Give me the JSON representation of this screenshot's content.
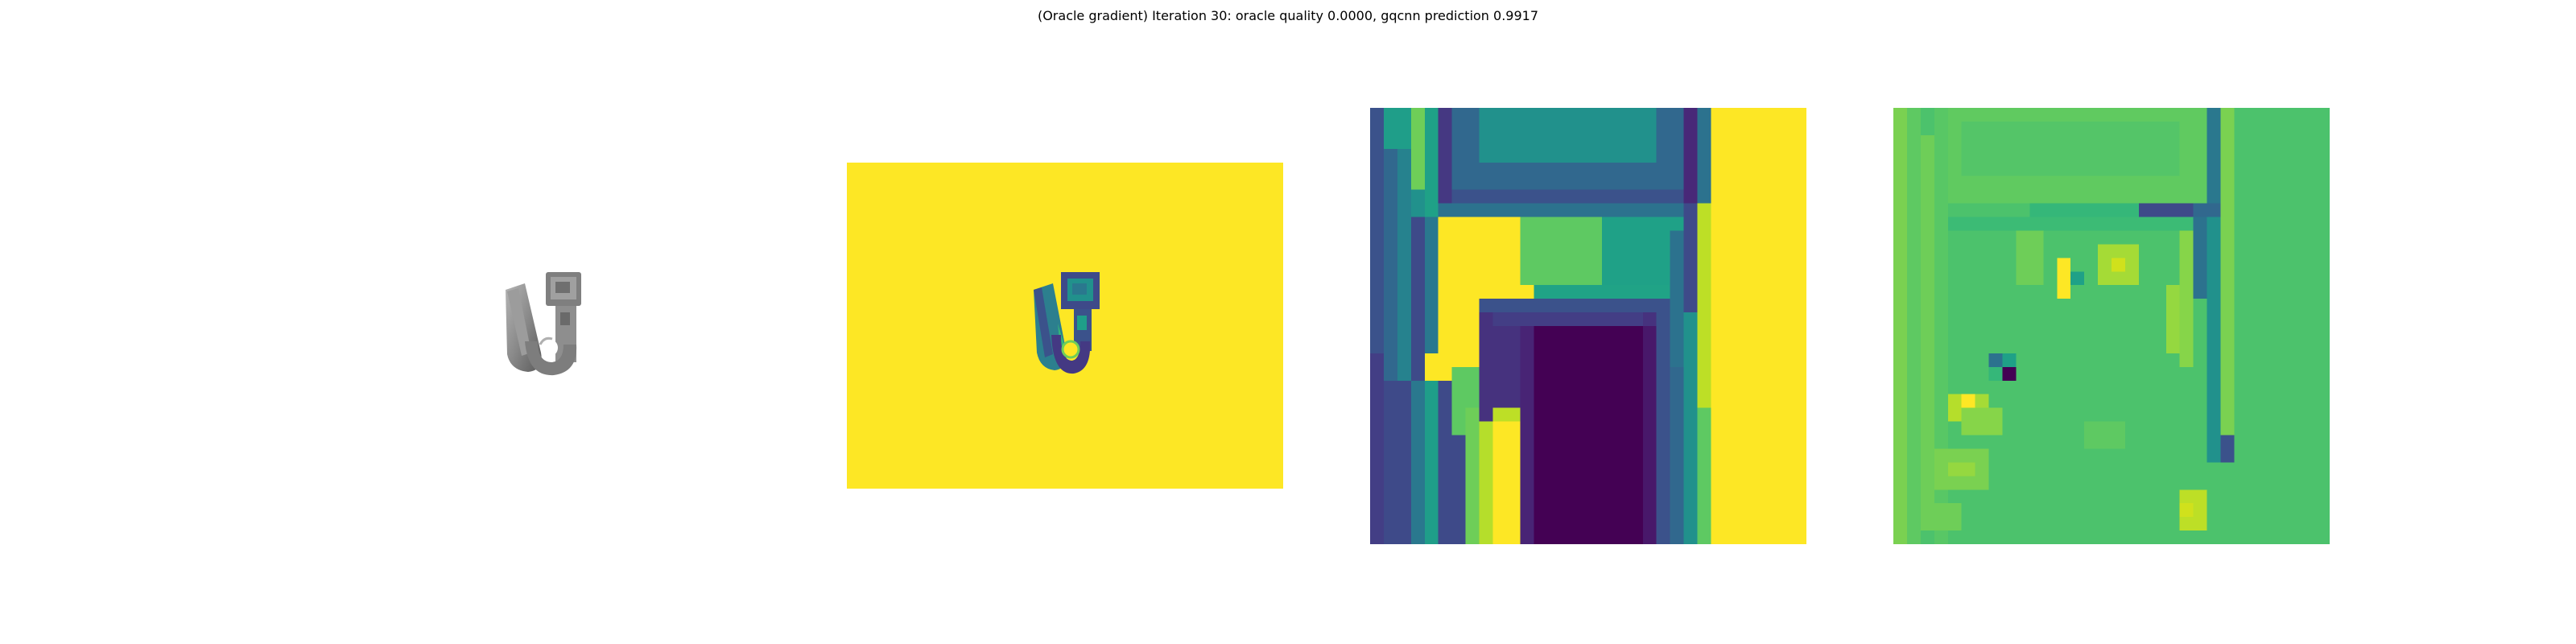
{
  "figure": {
    "title": "(Oracle gradient) Iteration 30: oracle quality 0.0000, gqcnn prediction 0.9917"
  },
  "panels": {
    "render": {
      "colormap": "gray-shaded-mesh"
    },
    "depth_image": {
      "colormap": "viridis",
      "background_color": "#fde725"
    },
    "depth_crop": {
      "colormap": "viridis"
    },
    "gradient_map": {
      "colormap": "viridis",
      "background_color": "#4cc26c"
    }
  }
}
